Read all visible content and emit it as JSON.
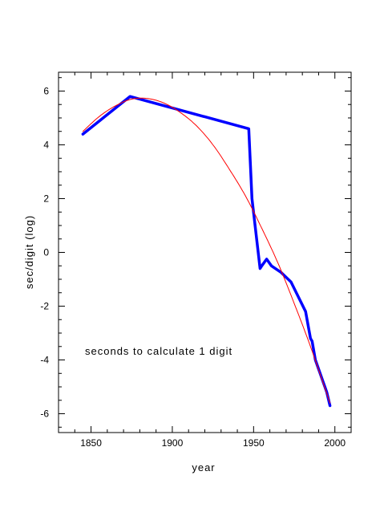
{
  "chart_data": {
    "type": "line",
    "title": "",
    "xlabel": "year",
    "ylabel": "sec/digit (log)",
    "xlim": [
      1830,
      2010
    ],
    "ylim": [
      -6.7,
      6.7
    ],
    "x_ticks": [
      1850,
      1900,
      1950,
      2000
    ],
    "x_tick_labels": [
      "1850",
      "1900",
      "1950",
      "2000"
    ],
    "y_ticks": [
      -6,
      -4,
      -2,
      0,
      2,
      4,
      6
    ],
    "y_tick_labels": [
      "-6",
      "-4",
      "-2",
      "0",
      "2",
      "4",
      "6"
    ],
    "grid": false,
    "legend": "none",
    "annotation": "seconds to calculate 1 digit",
    "series": [
      {
        "color": "#0000ff",
        "style": "thick-line",
        "x": [
          1845,
          1874,
          1947,
          1949,
          1954,
          1955,
          1958,
          1961,
          1967,
          1973,
          1982,
          1985,
          1986,
          1988,
          1995,
          1997
        ],
        "y": [
          4.4,
          5.8,
          4.6,
          2.0,
          -0.6,
          -0.5,
          -0.25,
          -0.5,
          -0.75,
          -1.1,
          -2.2,
          -3.2,
          -3.3,
          -4.0,
          -5.2,
          -5.7
        ]
      },
      {
        "color": "#ff0000",
        "style": "thin-fit-curve",
        "x": [
          1845,
          1855,
          1865,
          1875,
          1885,
          1895,
          1905,
          1915,
          1925,
          1935,
          1945,
          1955,
          1965,
          1975,
          1985,
          1997
        ],
        "y": [
          4.5,
          5.05,
          5.45,
          5.7,
          5.72,
          5.55,
          5.2,
          4.7,
          4.0,
          3.1,
          2.1,
          0.9,
          -0.4,
          -1.9,
          -3.5,
          -5.6
        ]
      }
    ]
  }
}
